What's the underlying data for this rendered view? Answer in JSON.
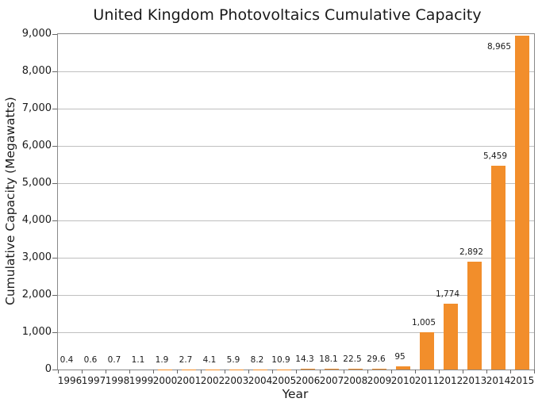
{
  "style": {
    "bar_color": "#F28E2B",
    "grid_color": "#BFBFBF",
    "spine_color": "#898989",
    "tick_color": "#666666",
    "text_color": "#1A1A1A",
    "background": "#FFFFFF"
  },
  "chart_data": {
    "type": "bar",
    "title": "United Kingdom Photovoltaics Cumulative Capacity",
    "xlabel": "Year",
    "ylabel": "Cumulative Capacity (Megawatts)",
    "categories": [
      "1996",
      "1997",
      "1998",
      "1999",
      "2000",
      "2001",
      "2002",
      "2003",
      "2004",
      "2005",
      "2006",
      "2007",
      "2008",
      "2009",
      "2010",
      "2011",
      "2012",
      "2013",
      "2014",
      "2015"
    ],
    "values": [
      0.4,
      0.6,
      0.7,
      1.1,
      1.9,
      2.7,
      4.1,
      5.9,
      8.2,
      10.9,
      14.3,
      18.1,
      22.5,
      29.6,
      95,
      1005,
      1774,
      2892,
      5459,
      8965
    ],
    "value_labels": [
      "0.4",
      "0.6",
      "0.7",
      "1.1",
      "1.9",
      "2.7",
      "4.1",
      "5.9",
      "8.2",
      "10.9",
      "14.3",
      "18.1",
      "22.5",
      "29.6",
      "95",
      "1,005",
      "1,774",
      "2,892",
      "5,459",
      "8,965"
    ],
    "ylim": [
      0,
      9000
    ],
    "ytick_values": [
      0,
      1000,
      2000,
      3000,
      4000,
      5000,
      6000,
      7000,
      8000,
      9000
    ],
    "ytick_labels": [
      "0",
      "1,000",
      "2,000",
      "3,000",
      "4,000",
      "5,000",
      "6,000",
      "7,000",
      "8,000",
      "9,000"
    ],
    "grid": "horizontal",
    "legend": "none",
    "bar_width_fraction": 0.6
  }
}
